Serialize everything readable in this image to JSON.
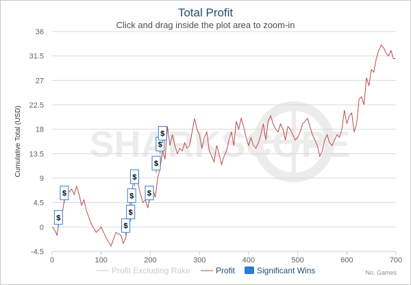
{
  "chart_data": {
    "type": "line",
    "title": "Total Profit",
    "subtitle": "Click and drag inside the plot area to zoom-in",
    "ylabel": "Cumulative Total (USD)",
    "xlabel": "No. Games",
    "xlim": [
      0,
      700
    ],
    "ylim": [
      -4.5,
      36
    ],
    "xticks": [
      0,
      100,
      200,
      300,
      400,
      500,
      600,
      700
    ],
    "yticks": [
      -4.5,
      0,
      4.5,
      9,
      13.5,
      18,
      22.5,
      27,
      31.5,
      36
    ],
    "grid": "horizontal",
    "legend_position": "bottom",
    "watermark": "SHARKSCOPE",
    "series": [
      {
        "name": "Profit Excluding Rake",
        "color": "#cccccc",
        "hidden": true,
        "x": [],
        "y": []
      },
      {
        "name": "Profit",
        "color": "#b94a48",
        "x": [
          0,
          5,
          10,
          15,
          20,
          25,
          30,
          35,
          40,
          45,
          50,
          55,
          60,
          65,
          70,
          80,
          90,
          100,
          110,
          120,
          130,
          140,
          145,
          150,
          155,
          160,
          165,
          170,
          175,
          180,
          185,
          190,
          195,
          200,
          205,
          210,
          215,
          220,
          225,
          230,
          235,
          240,
          245,
          250,
          255,
          260,
          265,
          270,
          275,
          280,
          285,
          290,
          295,
          300,
          305,
          310,
          315,
          320,
          325,
          330,
          335,
          340,
          345,
          350,
          355,
          360,
          365,
          370,
          375,
          380,
          385,
          390,
          395,
          400,
          405,
          410,
          415,
          420,
          425,
          430,
          435,
          440,
          445,
          450,
          455,
          460,
          465,
          470,
          475,
          480,
          485,
          490,
          495,
          500,
          505,
          510,
          515,
          520,
          525,
          530,
          535,
          540,
          545,
          550,
          555,
          560,
          565,
          570,
          575,
          580,
          585,
          590,
          595,
          600,
          605,
          610,
          615,
          620,
          625,
          630,
          635,
          640,
          645,
          650,
          655,
          660,
          665,
          670,
          675,
          680,
          685,
          690,
          695,
          700
        ],
        "y": [
          0,
          -0.5,
          -1.5,
          1.5,
          2,
          5,
          6,
          6.5,
          7,
          6,
          7.5,
          6,
          4,
          5,
          3,
          0.5,
          -1,
          0,
          -2,
          -3.5,
          -1,
          -1.5,
          -3,
          -2,
          2,
          5,
          8,
          9.5,
          8,
          6,
          4.5,
          5,
          3.5,
          6,
          7,
          5.5,
          9,
          11,
          14,
          12.5,
          18.5,
          15,
          17,
          15,
          13.5,
          14.5,
          14,
          15.5,
          14.5,
          15,
          17.5,
          20,
          18,
          17,
          14.5,
          16.5,
          17.5,
          14,
          13,
          12,
          15,
          13.5,
          11.5,
          13,
          14,
          16,
          17.5,
          15,
          19.5,
          18,
          20,
          18.5,
          16.5,
          15,
          16.5,
          15,
          14.5,
          15.5,
          17,
          19,
          16,
          19.5,
          20.5,
          19,
          18,
          17.5,
          19,
          18,
          16,
          18.5,
          18,
          17,
          16,
          16.5,
          17.5,
          19,
          19.5,
          20,
          18.5,
          17,
          16,
          15,
          13,
          14,
          16,
          17,
          15.5,
          15,
          16,
          17,
          16.5,
          18,
          21.5,
          19,
          20.5,
          21,
          17.5,
          19,
          23.5,
          24,
          22.5,
          27.5,
          26,
          29,
          28.5,
          31,
          32.5,
          33.5,
          33,
          32,
          31.5,
          32.5,
          31,
          31
        ]
      },
      {
        "name": "Significant Wins",
        "color": "#2b7bd1",
        "marker": "$",
        "points": [
          {
            "x": 13,
            "y": 0
          },
          {
            "x": 25,
            "y": 4.5
          },
          {
            "x": 150,
            "y": -1.5
          },
          {
            "x": 160,
            "y": 1
          },
          {
            "x": 162,
            "y": 4
          },
          {
            "x": 168,
            "y": 7.5
          },
          {
            "x": 198,
            "y": 4.5
          },
          {
            "x": 212,
            "y": 10
          },
          {
            "x": 220,
            "y": 13.5
          },
          {
            "x": 225,
            "y": 15.5
          }
        ]
      }
    ]
  }
}
